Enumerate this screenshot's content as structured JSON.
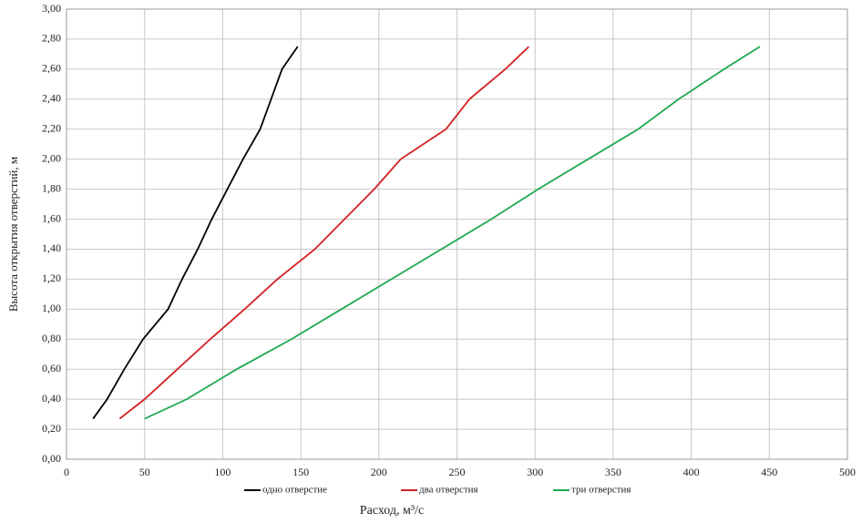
{
  "chart_data": {
    "type": "line",
    "xlabel": "Расход, м³/с",
    "ylabel": "Высота открытия отверстий, м",
    "xlim": [
      0,
      500
    ],
    "xticks": [
      0,
      50,
      100,
      150,
      200,
      250,
      300,
      350,
      400,
      450,
      500
    ],
    "ylim": [
      0,
      3
    ],
    "yticks": [
      {
        "value": 0,
        "label": "0,00"
      },
      {
        "value": 0.2,
        "label": "0,20"
      },
      {
        "value": 0.4,
        "label": "0,40"
      },
      {
        "value": 0.6,
        "label": "0,60"
      },
      {
        "value": 0.8,
        "label": "0,80"
      },
      {
        "value": 1.0,
        "label": "1,00"
      },
      {
        "value": 1.2,
        "label": "1,20"
      },
      {
        "value": 1.4,
        "label": "1,40"
      },
      {
        "value": 1.6,
        "label": "1,60"
      },
      {
        "value": 1.8,
        "label": "1,80"
      },
      {
        "value": 2.0,
        "label": "2,00"
      },
      {
        "value": 2.2,
        "label": "2,20"
      },
      {
        "value": 2.4,
        "label": "2,40"
      },
      {
        "value": 2.6,
        "label": "2,60"
      },
      {
        "value": 2.8,
        "label": "2,80"
      },
      {
        "value": 3.0,
        "label": "3,00"
      }
    ],
    "grid": true,
    "legend": "bottom",
    "series": [
      {
        "name": "одно отверстие",
        "color": "#000000",
        "x": [
          17,
          26,
          37,
          49,
          65,
          74,
          84,
          93,
          103,
          113,
          124,
          131,
          138,
          148
        ],
        "values": [
          0.27,
          0.4,
          0.6,
          0.8,
          1.0,
          1.2,
          1.4,
          1.6,
          1.8,
          2.0,
          2.2,
          2.4,
          2.6,
          2.75
        ]
      },
      {
        "name": "два отверстия",
        "color": "#d42020",
        "x": [
          34,
          50,
          71,
          92,
          114,
          135,
          159,
          178,
          197,
          214,
          243,
          258,
          281,
          296
        ],
        "values": [
          0.27,
          0.4,
          0.6,
          0.8,
          1.0,
          1.2,
          1.4,
          1.6,
          1.8,
          2.0,
          2.2,
          2.4,
          2.6,
          2.75
        ]
      },
      {
        "name": "три отверстия",
        "color": "#1fa84f",
        "x": [
          50,
          77,
          109,
          144,
          176,
          208,
          240,
          272,
          302,
          334,
          366,
          392,
          421,
          444
        ],
        "values": [
          0.27,
          0.4,
          0.6,
          0.8,
          1.0,
          1.2,
          1.4,
          1.6,
          1.8,
          2.0,
          2.2,
          2.4,
          2.6,
          2.75
        ]
      }
    ]
  }
}
